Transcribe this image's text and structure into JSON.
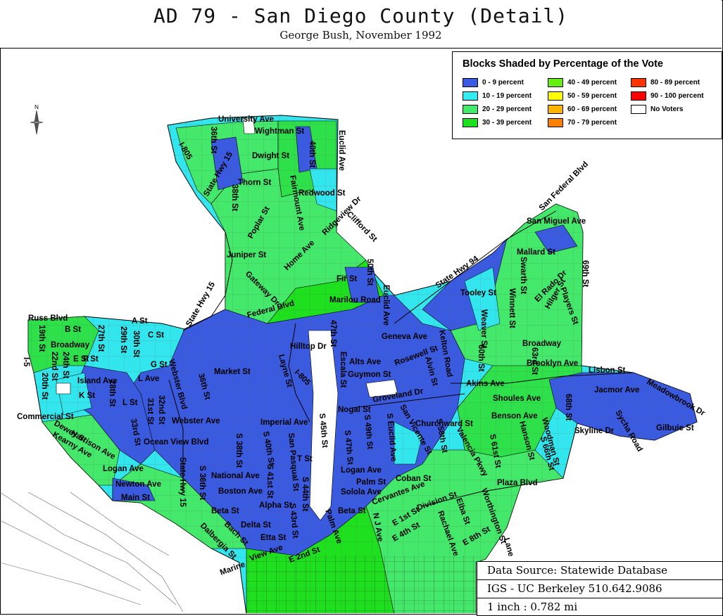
{
  "title": "AD 79 - San Diego County (Detail)",
  "subtitle": "George Bush, November 1992",
  "north_label": "N",
  "legend": {
    "title": "Blocks Shaded by Percentage of the Vote",
    "items": [
      {
        "label": "0 - 9 percent",
        "color": "#3a5ae0"
      },
      {
        "label": "10 - 19 percent",
        "color": "#33ecf2"
      },
      {
        "label": "20 - 29 percent",
        "color": "#44e86a"
      },
      {
        "label": "30 - 39 percent",
        "color": "#1fe01f"
      },
      {
        "label": "40 - 49 percent",
        "color": "#66ee11"
      },
      {
        "label": "50 - 59 percent",
        "color": "#ffff00"
      },
      {
        "label": "60 - 69 percent",
        "color": "#ffb400"
      },
      {
        "label": "70 - 79 percent",
        "color": "#ff7f00"
      },
      {
        "label": "80 - 89 percent",
        "color": "#ff3300"
      },
      {
        "label": "90 - 100 percent",
        "color": "#ff0000"
      },
      {
        "label": "No Voters",
        "color": "#ffffff"
      }
    ]
  },
  "source": {
    "line1": "Data Source: Statewide Database",
    "line2": "IGS - UC Berkeley 510.642.9086",
    "line3": "1 inch : 0.782 mi"
  },
  "streets": [
    "University Ave",
    "Wightman St",
    "36th St",
    "Euclid Ave",
    "I-805",
    "Dwight St",
    "40th St",
    "State Hwy 15",
    "Thorn St",
    "Fairmount Ave",
    "Redwood St",
    "38th St",
    "Poplar St",
    "Ridgeview Dr",
    "Clifford St",
    "Home Ave",
    "Juniper St",
    "Gateway Dr",
    "50th St",
    "Fir St",
    "Marilou Road",
    "Euclid Ave",
    "State Hwy 94",
    "San Miguel Ave",
    "San Federal Blvd",
    "Mallard St",
    "Swarth St",
    "69th St",
    "Tooley St",
    "El Rado Dr",
    "Players St",
    "Federal Blvd",
    "State Hwy 15",
    "Russ Blvd",
    "A St",
    "B St",
    "19th St",
    "27th St",
    "29th St",
    "30th St",
    "C St",
    "Broadway",
    "Hilltop Dr",
    "47th St",
    "Geneva Ave",
    "Rosewell St",
    "Kelton Road",
    "Weaver St",
    "Winnett St",
    "Hilger St",
    "Broadway",
    "I-5",
    "E St",
    "F St",
    "G St",
    "22nd St",
    "24th St",
    "Market St",
    "Layne St",
    "Escala St",
    "Alts Ave",
    "Guymon St",
    "60th St",
    "63rd St",
    "Brooklyn Ave",
    "Lisbon St",
    "20th St",
    "Island Ave",
    "L Ave",
    "Webster Blvd",
    "I-805",
    "Alvin St",
    "Akins Ave",
    "Jacmor Ave",
    "Meadowbrook Dr",
    "K St",
    "28th St",
    "L St",
    "31st St",
    "32nd St",
    "36th St",
    "Groveland Dr",
    "Nogal St",
    "Shoules Ave",
    "68th St",
    "Commercial St",
    "Webster Ave",
    "Imperial Ave",
    "San Vicente St",
    "Benson Ave",
    "Woodman St",
    "Skyline Dr",
    "Sycha Road",
    "Gilbuie St",
    "Dewey St",
    "Harrison Ave",
    "33rd St",
    "S 45th St",
    "S 49th St",
    "S Euclid Ave",
    "Churchward St",
    "Kearny Ave",
    "Ocean View Blvd",
    "S 38th St",
    "S 40th St",
    "San Pasqual St",
    "S 47th St",
    "S 58th St",
    "Valencia Pkwy",
    "S 61st St",
    "Hanson St",
    "S 66th St",
    "Logan Ave",
    "National Ave",
    "T St",
    "Logan Ave",
    "Newton Ave",
    "Boston Ave",
    "S 41st St",
    "S 36th St",
    "State Hwy 15",
    "Palm St",
    "Coban St",
    "Plaza Blvd",
    "Main St",
    "S 44th St",
    "Solola Ave",
    "Cervantes Ave",
    "Division St",
    "Alpha St",
    "Beta St",
    "Beta St",
    "Delta St",
    "S 43rd St",
    "Rachael Ave",
    "Elba St",
    "Worthington St",
    "E 1st St",
    "E 4th St",
    "E 8th St",
    "Dalbergia St",
    "Bach St",
    "Etta St",
    "Palm Ave",
    "N J Ave",
    "Lane",
    "View Ave",
    "E 2nd St",
    "Marine"
  ]
}
